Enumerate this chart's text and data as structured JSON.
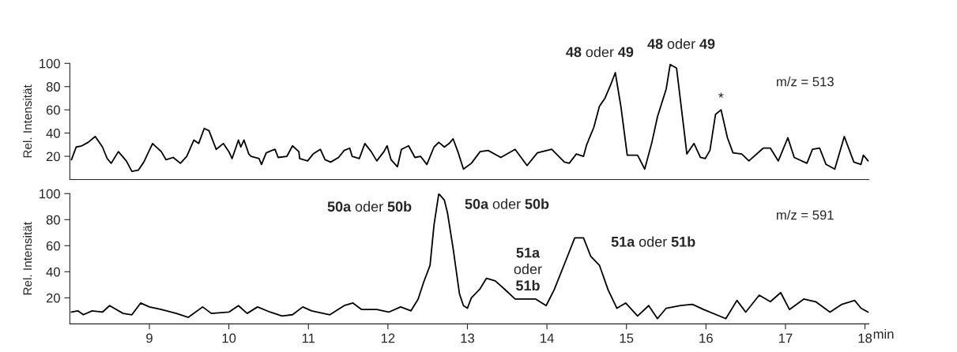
{
  "chart_data": [
    {
      "type": "line",
      "ylabel": "Rel. Intensität",
      "xlim": [
        8,
        18.05
      ],
      "ylim": [
        0,
        100
      ],
      "yticks": [
        20,
        40,
        60,
        80,
        100
      ],
      "tick_labels": "y",
      "grid": false,
      "legend": false,
      "series": [
        {
          "color": "#000000",
          "x": [
            8.02,
            8.08,
            8.15,
            8.23,
            8.3,
            8.32,
            8.41,
            8.47,
            8.52,
            8.61,
            8.71,
            8.78,
            8.86,
            8.93,
            9.04,
            9.15,
            9.21,
            9.3,
            9.39,
            9.47,
            9.56,
            9.62,
            9.69,
            9.75,
            9.84,
            9.93,
            10.0,
            10.04,
            10.12,
            10.15,
            10.19,
            10.25,
            10.28,
            10.38,
            10.41,
            10.47,
            10.54,
            10.58,
            10.62,
            10.73,
            10.8,
            10.88,
            10.89,
            10.99,
            11.06,
            11.15,
            11.21,
            11.28,
            11.38,
            11.45,
            11.52,
            11.55,
            11.64,
            11.71,
            11.79,
            11.86,
            11.95,
            11.99,
            12.04,
            12.12,
            12.17,
            12.26,
            12.34,
            12.41,
            12.49,
            12.58,
            12.64,
            12.71,
            12.77,
            12.82,
            12.88,
            12.95,
            13.05,
            13.16,
            13.26,
            13.42,
            13.6,
            13.75,
            13.88,
            14.06,
            14.22,
            14.28,
            14.37,
            14.46,
            14.5,
            14.59,
            14.66,
            14.73,
            14.81,
            14.86,
            14.93,
            15.01,
            15.14,
            15.23,
            15.32,
            15.39,
            15.5,
            15.55,
            15.63,
            15.72,
            15.76,
            15.85,
            15.93,
            15.99,
            16.05,
            16.12,
            16.19,
            16.27,
            16.34,
            16.45,
            16.54,
            16.72,
            16.81,
            16.91,
            17.03,
            17.11,
            17.27,
            17.34,
            17.43,
            17.51,
            17.62,
            17.74,
            17.86,
            17.95,
            17.98,
            18.04
          ],
          "values": [
            17,
            28,
            29,
            32,
            36,
            37,
            28,
            18,
            14,
            24,
            16,
            7,
            8,
            15,
            31,
            24,
            17,
            19,
            14,
            20,
            34,
            31,
            44,
            42,
            26,
            31,
            24,
            18,
            34,
            28,
            34,
            22,
            20,
            18,
            13,
            23,
            25,
            26,
            19,
            20,
            29,
            24,
            18,
            16,
            22,
            26,
            17,
            15,
            19,
            25,
            27,
            20,
            18,
            31,
            24,
            16,
            24,
            29,
            17,
            11,
            26,
            29,
            19,
            20,
            13,
            28,
            32,
            28,
            31,
            35,
            24,
            9,
            14,
            24,
            25,
            19,
            26,
            12,
            23,
            26,
            15,
            14,
            22,
            20,
            30,
            45,
            63,
            70,
            83,
            92,
            63,
            21,
            21,
            9,
            32,
            54,
            78,
            99,
            96,
            45,
            22,
            31,
            19,
            18,
            25,
            56,
            60,
            36,
            23,
            22,
            16,
            27,
            27,
            16,
            36,
            19,
            14,
            26,
            27,
            13,
            9,
            37,
            15,
            13,
            21,
            16
          ]
        }
      ],
      "annotations": [
        "48 oder 49",
        "48 oder 49",
        {
          "text": "*",
          "x": 16.19,
          "y": 60
        },
        "m/z = 513"
      ]
    },
    {
      "type": "line",
      "ylabel": "Rel. Intensität",
      "xlabel": "min",
      "xlim": [
        8,
        18.05
      ],
      "ylim": [
        0,
        100
      ],
      "xticks": [
        9,
        10,
        11,
        12,
        13,
        14,
        15,
        16,
        17,
        18
      ],
      "yticks": [
        20,
        40,
        60,
        80,
        100
      ],
      "grid": false,
      "legend": false,
      "series": [
        {
          "color": "#000000",
          "x": [
            8.02,
            8.1,
            8.17,
            8.28,
            8.41,
            8.5,
            8.67,
            8.78,
            8.89,
            9.0,
            9.15,
            9.34,
            9.49,
            9.67,
            9.78,
            10.0,
            10.12,
            10.23,
            10.36,
            10.52,
            10.67,
            10.8,
            10.93,
            11.04,
            11.27,
            11.45,
            11.56,
            11.67,
            11.86,
            12.01,
            12.16,
            12.29,
            12.38,
            12.45,
            12.53,
            12.58,
            12.64,
            12.71,
            12.75,
            12.82,
            12.9,
            12.95,
            13.0,
            13.05,
            13.16,
            13.24,
            13.35,
            13.46,
            13.6,
            13.86,
            13.99,
            14.09,
            14.24,
            14.35,
            14.46,
            14.55,
            14.66,
            14.77,
            14.88,
            14.99,
            15.14,
            15.28,
            15.39,
            15.5,
            15.68,
            15.83,
            15.97,
            16.25,
            16.39,
            16.5,
            16.67,
            16.81,
            16.94,
            17.05,
            17.23,
            17.38,
            17.56,
            17.71,
            17.87,
            17.95,
            18.04
          ],
          "values": [
            9,
            10,
            7,
            10,
            9,
            14,
            8,
            7,
            16,
            13,
            11,
            8,
            5,
            13,
            8,
            9,
            14,
            8,
            13,
            9,
            6,
            7,
            13,
            10,
            7,
            14,
            16,
            11,
            11,
            9,
            13,
            10,
            19,
            32,
            45,
            76,
            100,
            95,
            85,
            58,
            23,
            14,
            12,
            20,
            27,
            35,
            33,
            27,
            19,
            19,
            14,
            26,
            49,
            66,
            66,
            52,
            45,
            26,
            12,
            16,
            6,
            14,
            4,
            12,
            14,
            15,
            11,
            4,
            18,
            9,
            22,
            17,
            24,
            11,
            19,
            17,
            9,
            15,
            18,
            12,
            9
          ]
        }
      ],
      "annotations": [
        "50a oder 50b",
        "50a oder 50b",
        {
          "text": "51a\noder\n51b",
          "x": 13.76,
          "y": 20
        },
        "51a oder 51b",
        "m/z = 591"
      ]
    }
  ]
}
